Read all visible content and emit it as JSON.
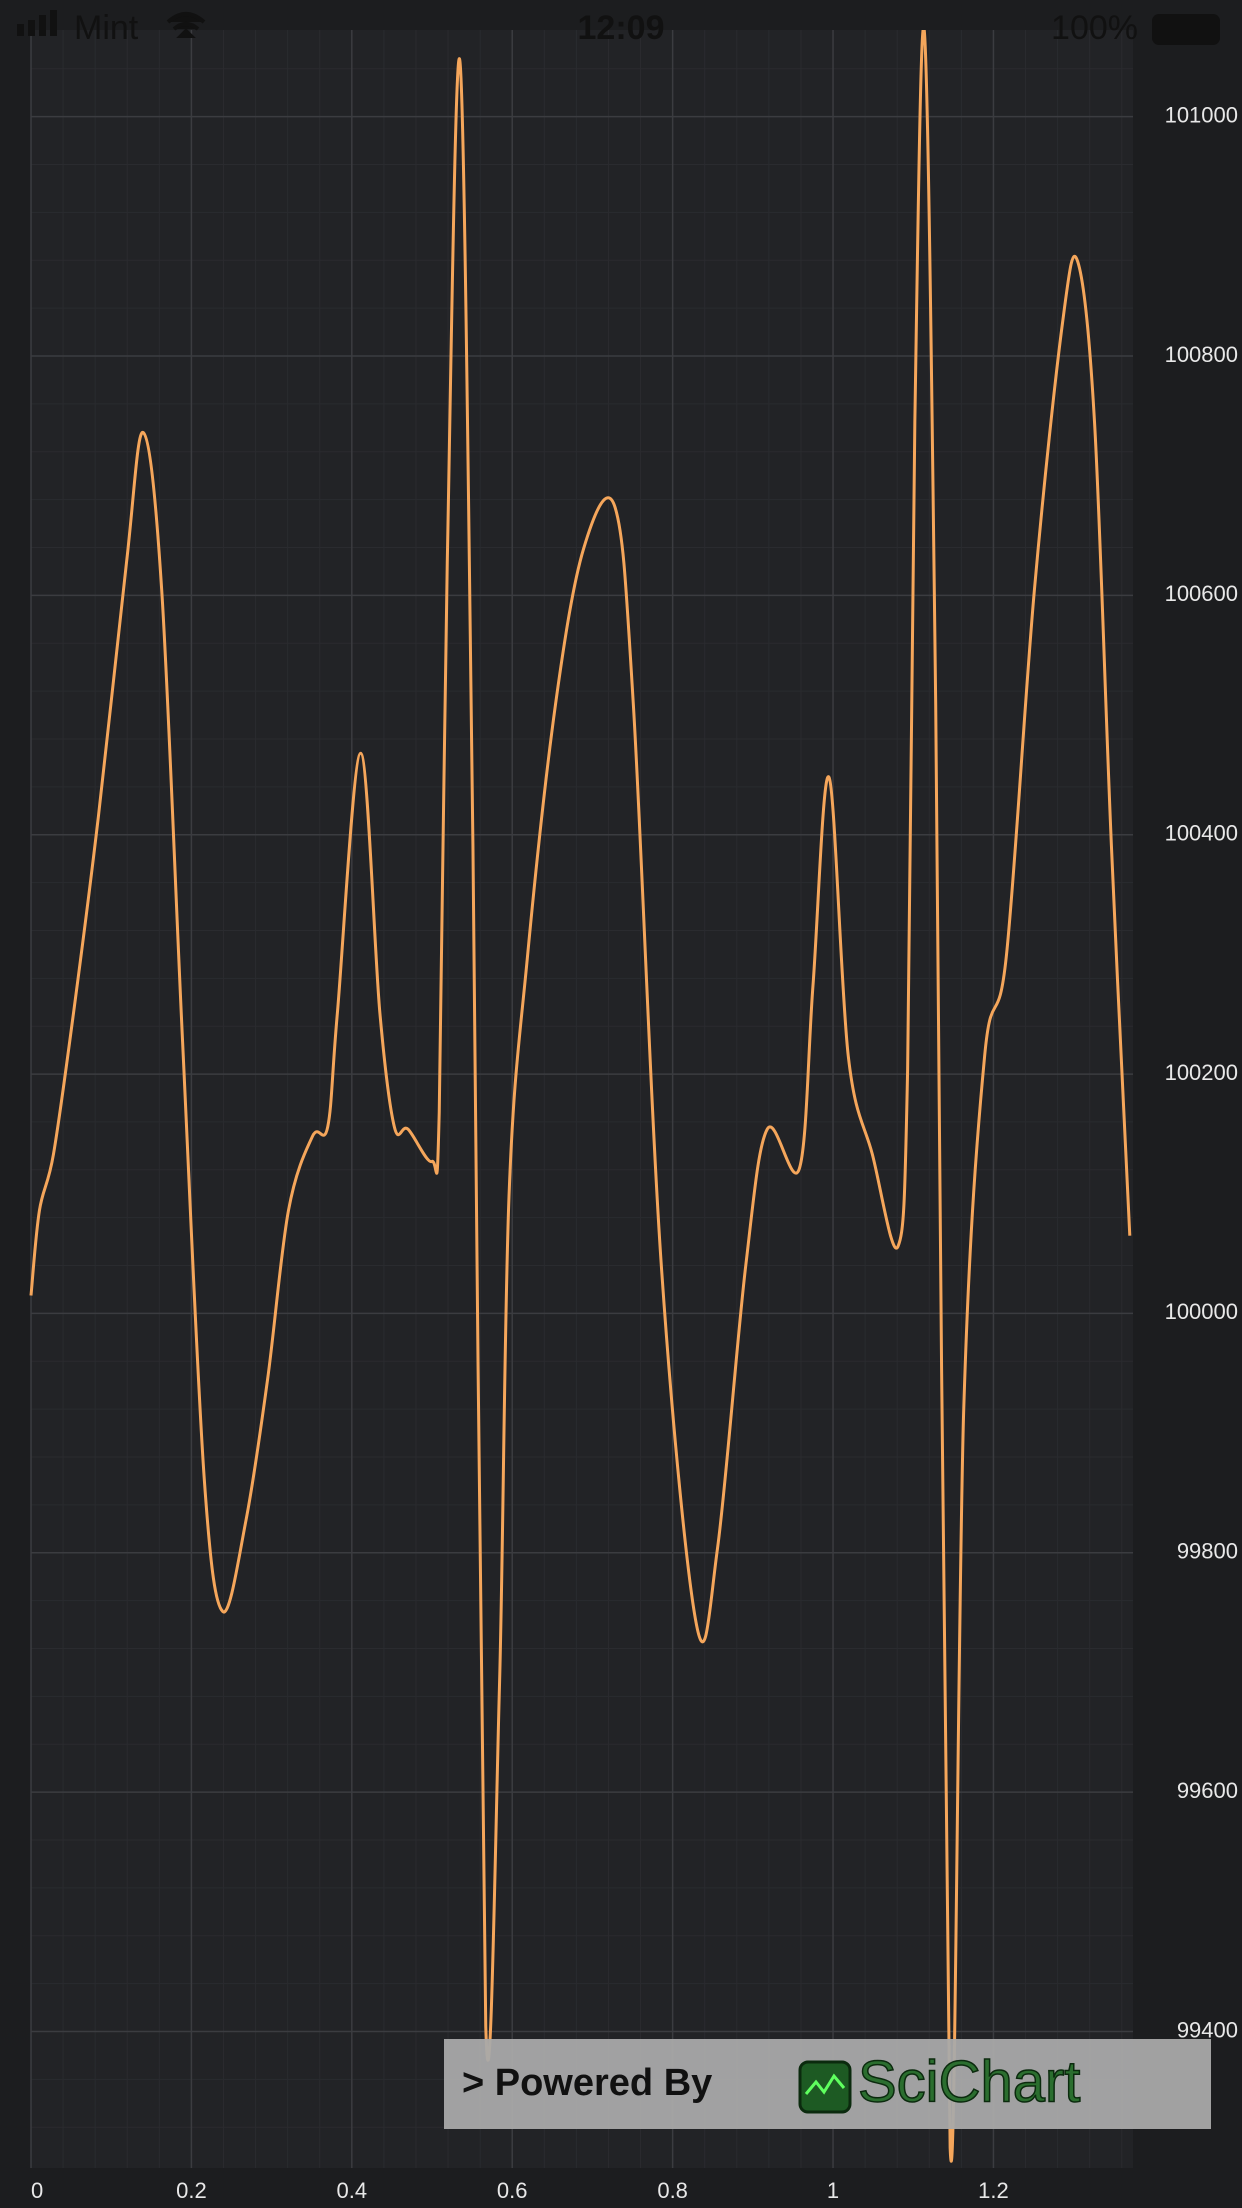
{
  "status_bar": {
    "carrier": "Mint",
    "time": "12:09",
    "battery": "100%"
  },
  "watermark": {
    "prefix": "> Powered By",
    "brand": "SciChart"
  },
  "chart_data": {
    "type": "line",
    "x": [
      0,
      0.0105,
      0.028,
      0.053,
      0.084,
      0.119,
      0.14,
      0.163,
      0.189,
      0.216,
      0.239,
      0.268,
      0.295,
      0.321,
      0.351,
      0.37,
      0.382,
      0.411,
      0.435,
      0.453,
      0.47,
      0.5,
      0.509,
      0.519,
      0.535,
      0.551,
      0.567,
      0.584,
      0.596,
      0.619,
      0.654,
      0.689,
      0.728,
      0.751,
      0.786,
      0.83,
      0.856,
      0.891,
      0.918,
      0.958,
      0.975,
      0.995,
      1.019,
      1.049,
      1.081,
      1.093,
      1.102,
      1.114,
      1.128,
      1.146,
      1.163,
      1.189,
      1.216,
      1.251,
      1.286,
      1.305,
      1.326,
      1.347,
      1.37
    ],
    "series": [
      {
        "color": "#f5a65b",
        "values": [
          100015,
          100086,
          100133,
          100251,
          100415,
          100627,
          100736,
          100604,
          100227,
          99862,
          99751,
          99827,
          99945,
          100086,
          100148,
          100156,
          100251,
          100468,
          100251,
          100156,
          100154,
          100127,
          100168,
          100627,
          101045,
          100392,
          99404,
          99686,
          100098,
          100298,
          100509,
          100639,
          100674,
          100509,
          100039,
          99739,
          99804,
          100039,
          100154,
          100121,
          100274,
          100448,
          100215,
          100133,
          100056,
          100204,
          100745,
          101070,
          100509,
          99303,
          99921,
          100215,
          100298,
          100604,
          100827,
          100879,
          100745,
          100392,
          100065
        ]
      }
    ],
    "xlim": [
      0,
      1.374
    ],
    "xticks": [
      0,
      0.2,
      0.4,
      0.6,
      0.8,
      1,
      1.2
    ],
    "ylim": [
      99286,
      101074
    ],
    "yticks": [
      99400,
      99600,
      99800,
      100000,
      100200,
      100400,
      100600,
      100800,
      101000
    ],
    "grid": true
  }
}
